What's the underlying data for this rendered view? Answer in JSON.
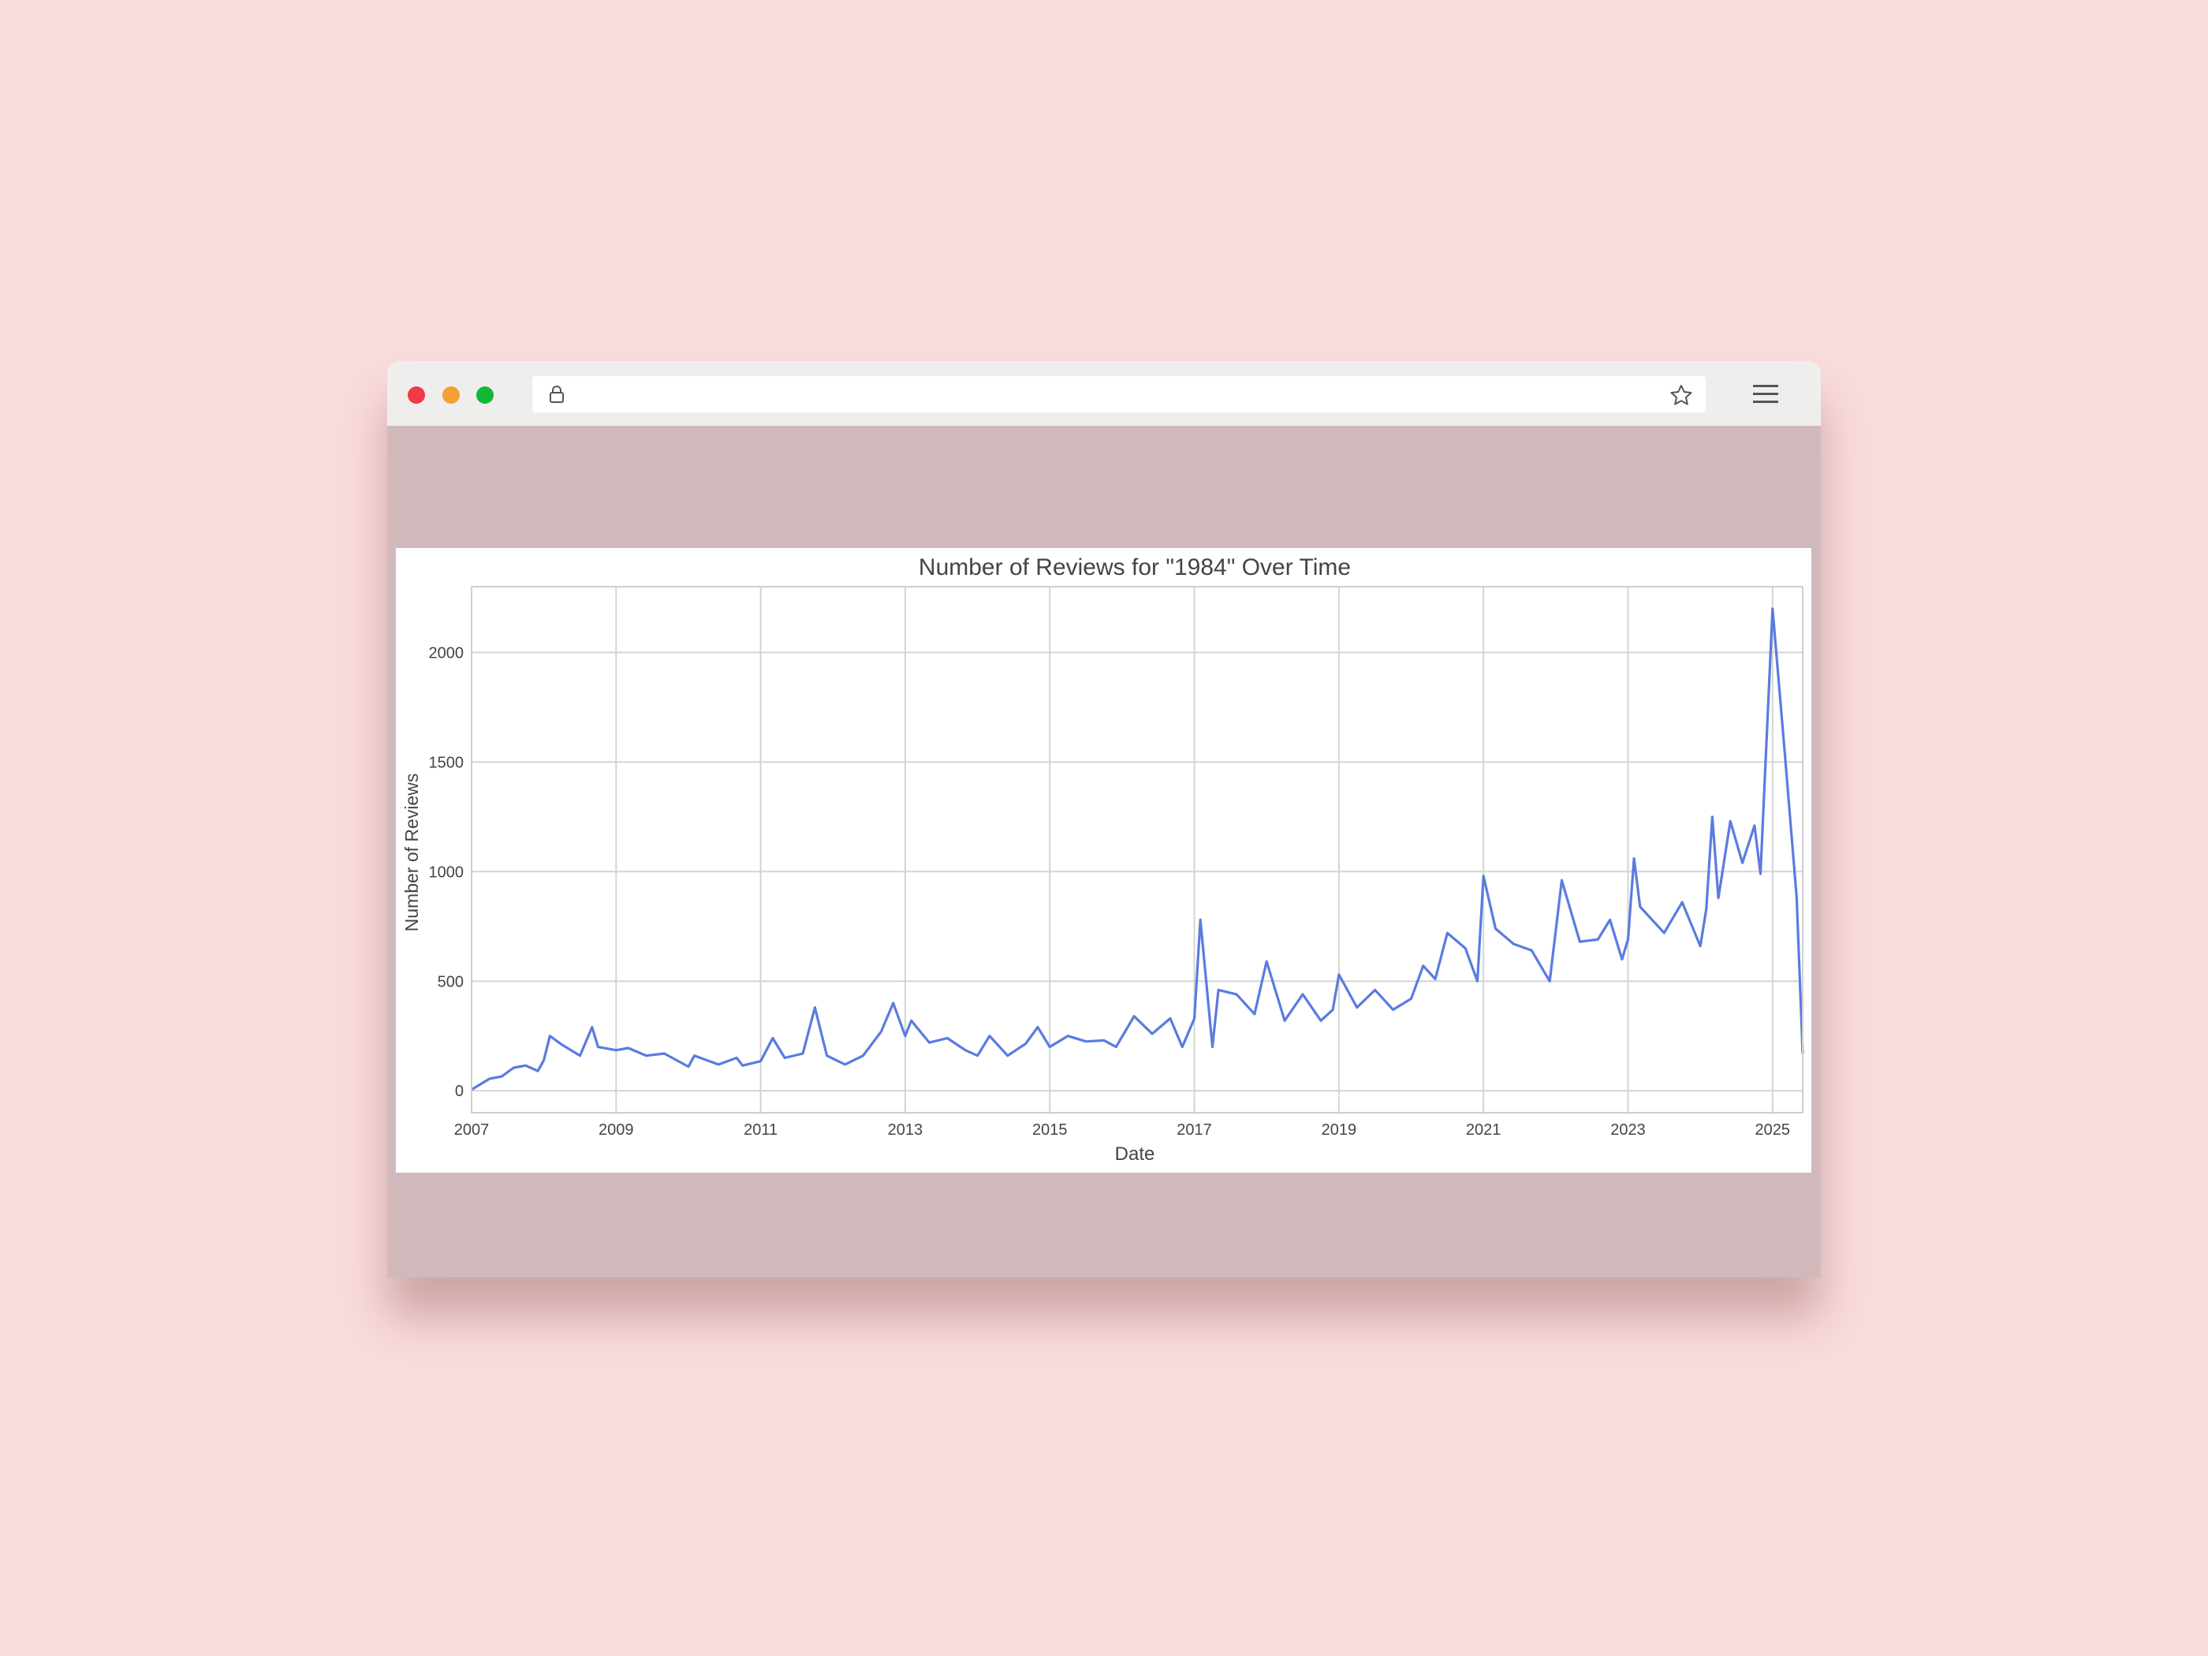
{
  "browser": {
    "url": "",
    "buttons": [
      "close",
      "minimize",
      "maximize"
    ],
    "icons": [
      "lock-icon",
      "star-icon",
      "menu-icon"
    ]
  },
  "colors": {
    "background": "#fadcdd",
    "content_bg": "#d1b9bb",
    "line": "#5a7be0",
    "close": "#ed3b48",
    "minimize": "#f3a033",
    "maximize": "#12b83a"
  },
  "chart_data": {
    "type": "line",
    "title": "Number of Reviews for \"1984\" Over Time",
    "xlabel": "Date",
    "ylabel": "Number of Reviews",
    "grid": true,
    "x_ticks": [
      "2007",
      "2009",
      "2011",
      "2013",
      "2015",
      "2017",
      "2019",
      "2021",
      "2023",
      "2025"
    ],
    "y_ticks": [
      0,
      500,
      1000,
      1500,
      2000
    ],
    "xlim": [
      "2007-01",
      "2025-06"
    ],
    "ylim": [
      -100,
      2300
    ],
    "series": [
      {
        "color": "#5a7be0",
        "points": [
          [
            "2007-01",
            5
          ],
          [
            "2007-04",
            55
          ],
          [
            "2007-06",
            65
          ],
          [
            "2007-08",
            105
          ],
          [
            "2007-10",
            115
          ],
          [
            "2007-12",
            90
          ],
          [
            "2008-01",
            140
          ],
          [
            "2008-02",
            250
          ],
          [
            "2008-04",
            210
          ],
          [
            "2008-07",
            160
          ],
          [
            "2008-09",
            290
          ],
          [
            "2008-10",
            200
          ],
          [
            "2009-01",
            185
          ],
          [
            "2009-03",
            195
          ],
          [
            "2009-06",
            160
          ],
          [
            "2009-09",
            170
          ],
          [
            "2010-01",
            110
          ],
          [
            "2010-02",
            160
          ],
          [
            "2010-06",
            120
          ],
          [
            "2010-09",
            150
          ],
          [
            "2010-10",
            115
          ],
          [
            "2011-01",
            135
          ],
          [
            "2011-03",
            240
          ],
          [
            "2011-05",
            150
          ],
          [
            "2011-08",
            170
          ],
          [
            "2011-10",
            380
          ],
          [
            "2011-12",
            160
          ],
          [
            "2012-03",
            120
          ],
          [
            "2012-06",
            160
          ],
          [
            "2012-09",
            270
          ],
          [
            "2012-11",
            400
          ],
          [
            "2013-01",
            250
          ],
          [
            "2013-02",
            320
          ],
          [
            "2013-05",
            220
          ],
          [
            "2013-08",
            240
          ],
          [
            "2013-11",
            185
          ],
          [
            "2014-01",
            160
          ],
          [
            "2014-03",
            250
          ],
          [
            "2014-06",
            160
          ],
          [
            "2014-09",
            215
          ],
          [
            "2014-11",
            290
          ],
          [
            "2015-01",
            200
          ],
          [
            "2015-04",
            250
          ],
          [
            "2015-07",
            225
          ],
          [
            "2015-10",
            230
          ],
          [
            "2015-12",
            200
          ],
          [
            "2016-03",
            340
          ],
          [
            "2016-06",
            260
          ],
          [
            "2016-09",
            330
          ],
          [
            "2016-11",
            200
          ],
          [
            "2017-01",
            330
          ],
          [
            "2017-02",
            780
          ],
          [
            "2017-04",
            200
          ],
          [
            "2017-05",
            460
          ],
          [
            "2017-08",
            440
          ],
          [
            "2017-11",
            350
          ],
          [
            "2018-01",
            590
          ],
          [
            "2018-04",
            320
          ],
          [
            "2018-07",
            440
          ],
          [
            "2018-10",
            320
          ],
          [
            "2018-12",
            370
          ],
          [
            "2019-01",
            530
          ],
          [
            "2019-04",
            380
          ],
          [
            "2019-07",
            460
          ],
          [
            "2019-10",
            370
          ],
          [
            "2020-01",
            420
          ],
          [
            "2020-03",
            570
          ],
          [
            "2020-05",
            510
          ],
          [
            "2020-07",
            720
          ],
          [
            "2020-10",
            650
          ],
          [
            "2020-12",
            500
          ],
          [
            "2021-01",
            980
          ],
          [
            "2021-03",
            740
          ],
          [
            "2021-06",
            670
          ],
          [
            "2021-09",
            640
          ],
          [
            "2021-12",
            500
          ],
          [
            "2022-02",
            960
          ],
          [
            "2022-05",
            680
          ],
          [
            "2022-08",
            690
          ],
          [
            "2022-10",
            780
          ],
          [
            "2022-12",
            600
          ],
          [
            "2023-01",
            690
          ],
          [
            "2023-02",
            1060
          ],
          [
            "2023-03",
            840
          ],
          [
            "2023-07",
            720
          ],
          [
            "2023-10",
            860
          ],
          [
            "2024-01",
            660
          ],
          [
            "2024-02",
            830
          ],
          [
            "2024-03",
            1250
          ],
          [
            "2024-04",
            880
          ],
          [
            "2024-06",
            1230
          ],
          [
            "2024-08",
            1040
          ],
          [
            "2024-10",
            1210
          ],
          [
            "2024-11",
            990
          ],
          [
            "2025-01",
            2200
          ],
          [
            "2025-03",
            1550
          ],
          [
            "2025-05",
            880
          ],
          [
            "2025-06",
            170
          ]
        ]
      }
    ]
  }
}
